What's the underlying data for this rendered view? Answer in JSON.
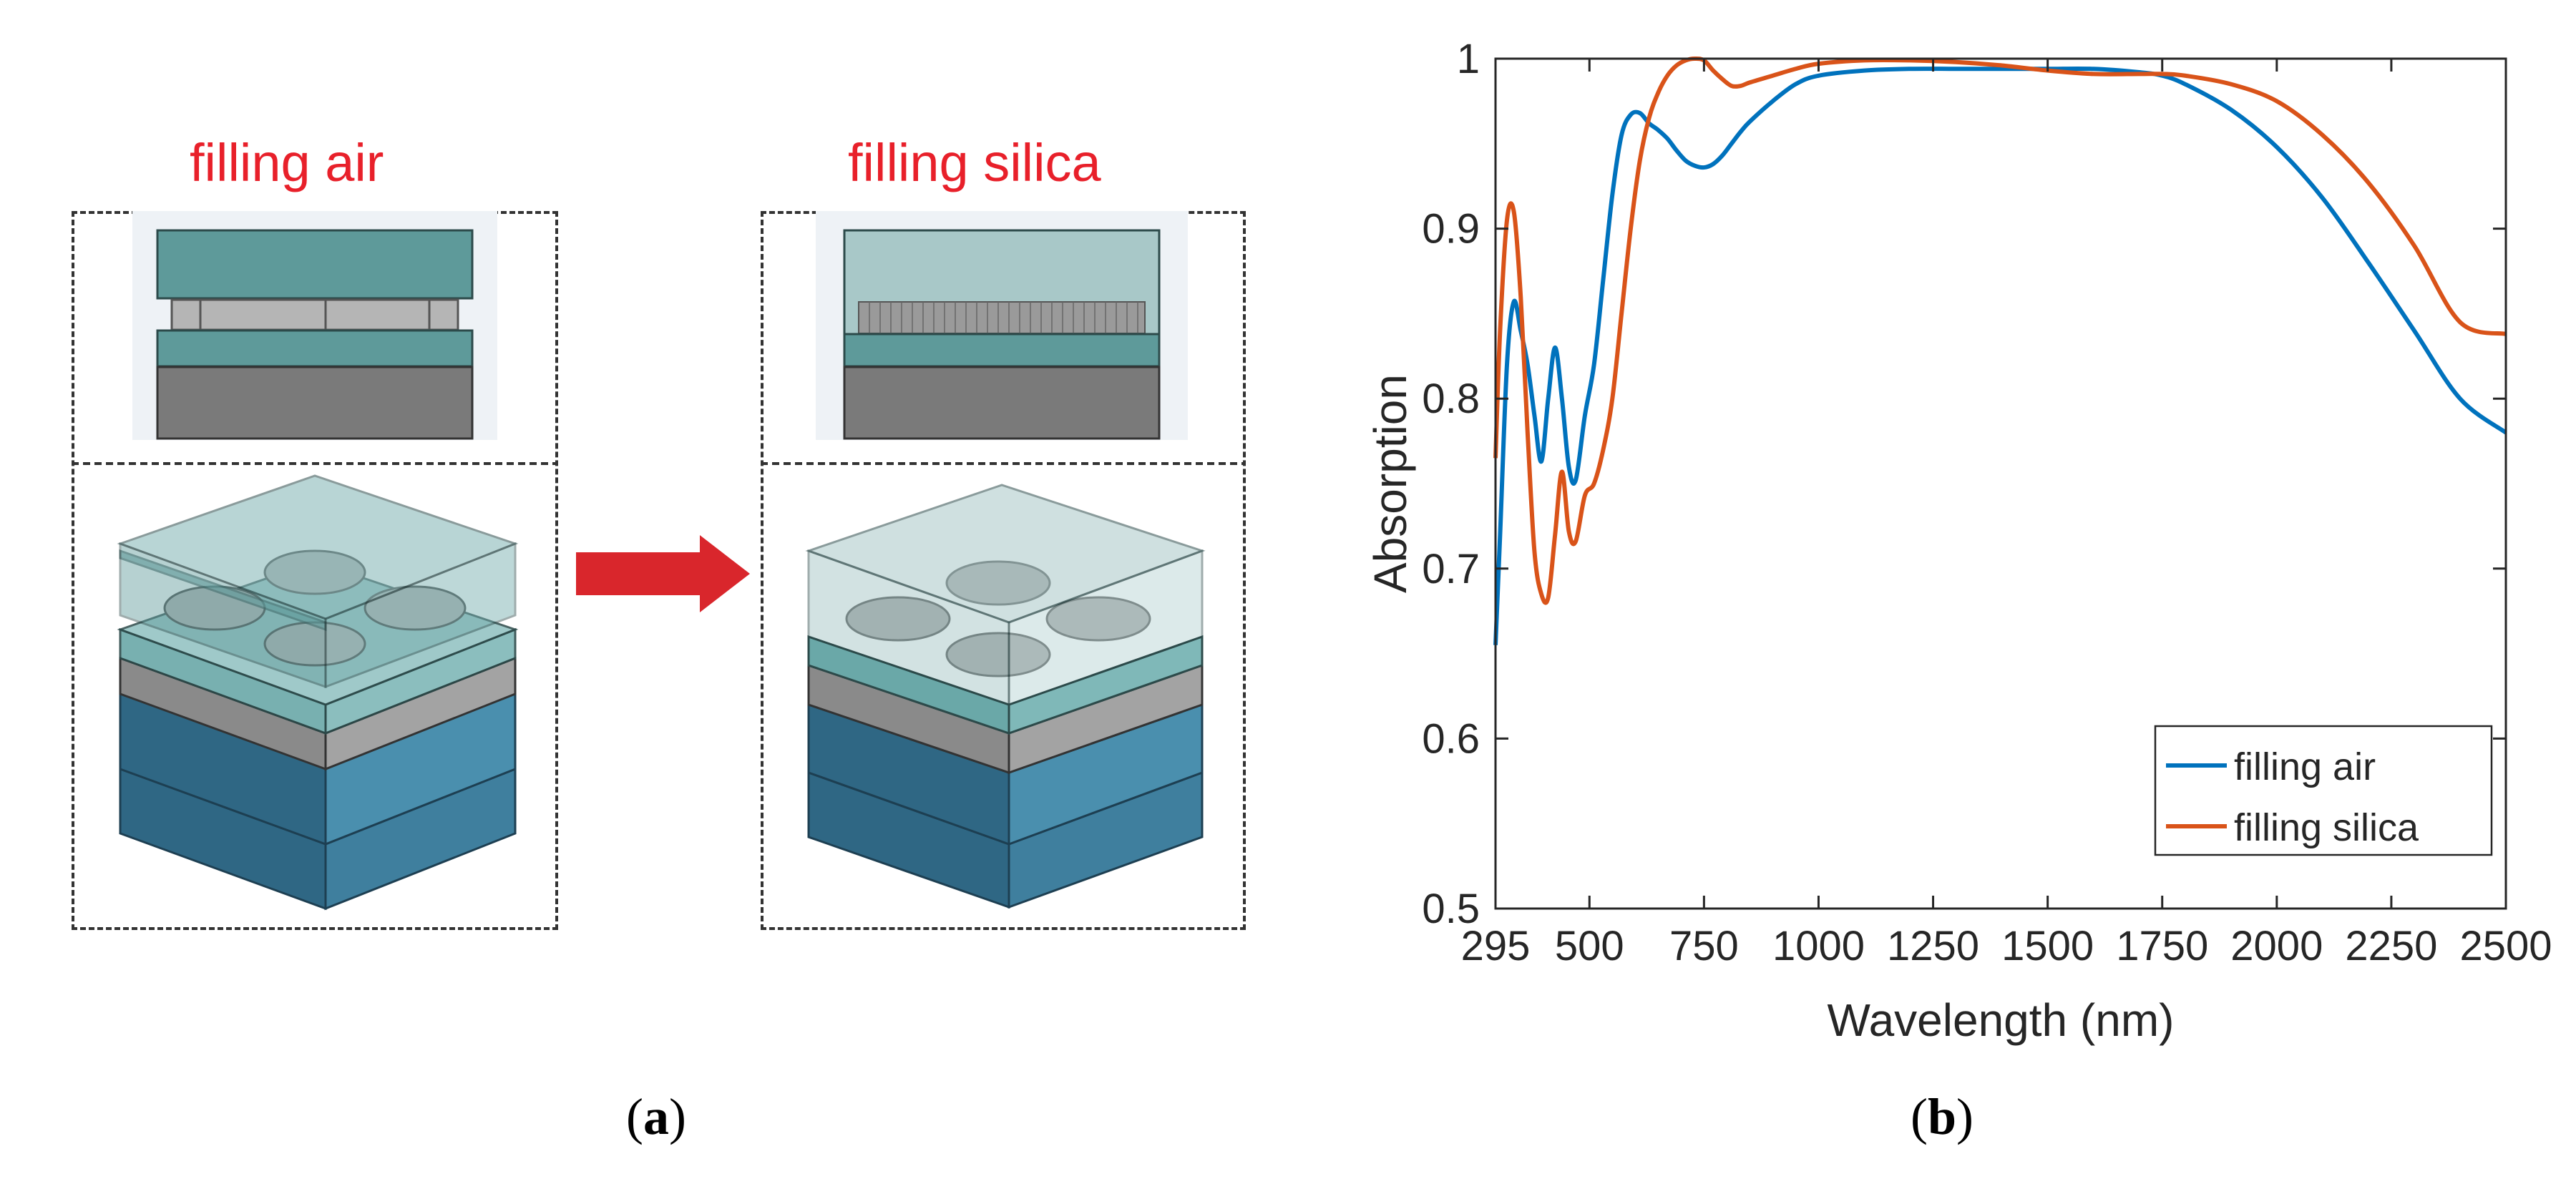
{
  "panel_a": {
    "left_title": "filling air",
    "right_title": "filling silica",
    "caption_letter": "a",
    "colors": {
      "title_red": "#e8202a",
      "arrow_red": "#d9262c",
      "glass": "#5e9a9a",
      "substrate": "#3f7f9e",
      "metal_gray": "#8c8c8c"
    }
  },
  "panel_b": {
    "caption_letter": "b"
  },
  "chart_data": {
    "type": "line",
    "title": "",
    "xlabel": "Wavelength (nm)",
    "ylabel": "Absorption",
    "xlim": [
      295,
      2500
    ],
    "ylim": [
      0.5,
      1.0
    ],
    "xticks": [
      295,
      500,
      750,
      1000,
      1250,
      1500,
      1750,
      2000,
      2250,
      2500
    ],
    "xtick_labels": [
      "295",
      "500",
      "750",
      "1000",
      "1250",
      "1500",
      "1750",
      "2000",
      "2250",
      "2500"
    ],
    "yticks": [
      0.5,
      0.6,
      0.7,
      0.8,
      0.9,
      1.0
    ],
    "ytick_labels": [
      "0.5",
      "0.6",
      "0.7",
      "0.8",
      "0.9",
      "1"
    ],
    "legend_position": "bottom-right",
    "series": [
      {
        "name": "filling air",
        "color": "#0072bd",
        "x": [
          295,
          305,
          320,
          335,
          350,
          365,
          380,
          395,
          410,
          425,
          440,
          455,
          470,
          490,
          510,
          530,
          550,
          570,
          590,
          610,
          630,
          650,
          670,
          690,
          710,
          730,
          750,
          770,
          790,
          810,
          830,
          850,
          900,
          950,
          1000,
          1100,
          1200,
          1300,
          1400,
          1500,
          1600,
          1700,
          1750,
          1800,
          1900,
          2000,
          2100,
          2200,
          2300,
          2400,
          2500
        ],
        "y": [
          0.655,
          0.72,
          0.82,
          0.857,
          0.84,
          0.82,
          0.79,
          0.763,
          0.8,
          0.83,
          0.8,
          0.76,
          0.752,
          0.79,
          0.82,
          0.87,
          0.92,
          0.955,
          0.967,
          0.968,
          0.962,
          0.958,
          0.953,
          0.946,
          0.94,
          0.937,
          0.936,
          0.938,
          0.943,
          0.95,
          0.957,
          0.963,
          0.975,
          0.985,
          0.99,
          0.993,
          0.994,
          0.994,
          0.994,
          0.994,
          0.994,
          0.992,
          0.99,
          0.985,
          0.97,
          0.948,
          0.918,
          0.88,
          0.84,
          0.8,
          0.78
        ]
      },
      {
        "name": "filling silica",
        "color": "#d95319",
        "x": [
          295,
          305,
          320,
          335,
          350,
          365,
          380,
          395,
          410,
          425,
          440,
          455,
          470,
          490,
          510,
          530,
          550,
          570,
          590,
          610,
          630,
          650,
          670,
          690,
          710,
          730,
          750,
          770,
          790,
          810,
          830,
          850,
          900,
          950,
          1000,
          1100,
          1200,
          1300,
          1400,
          1500,
          1600,
          1700,
          1750,
          1800,
          1900,
          2000,
          2100,
          2200,
          2300,
          2400,
          2500
        ],
        "y": [
          0.765,
          0.84,
          0.905,
          0.91,
          0.86,
          0.78,
          0.71,
          0.685,
          0.683,
          0.72,
          0.757,
          0.722,
          0.716,
          0.743,
          0.75,
          0.77,
          0.8,
          0.85,
          0.9,
          0.94,
          0.965,
          0.98,
          0.99,
          0.996,
          0.999,
          1.0,
          0.999,
          0.993,
          0.988,
          0.984,
          0.984,
          0.986,
          0.99,
          0.994,
          0.997,
          0.999,
          0.999,
          0.998,
          0.996,
          0.993,
          0.991,
          0.991,
          0.991,
          0.99,
          0.985,
          0.975,
          0.955,
          0.927,
          0.89,
          0.845,
          0.838
        ]
      }
    ]
  }
}
